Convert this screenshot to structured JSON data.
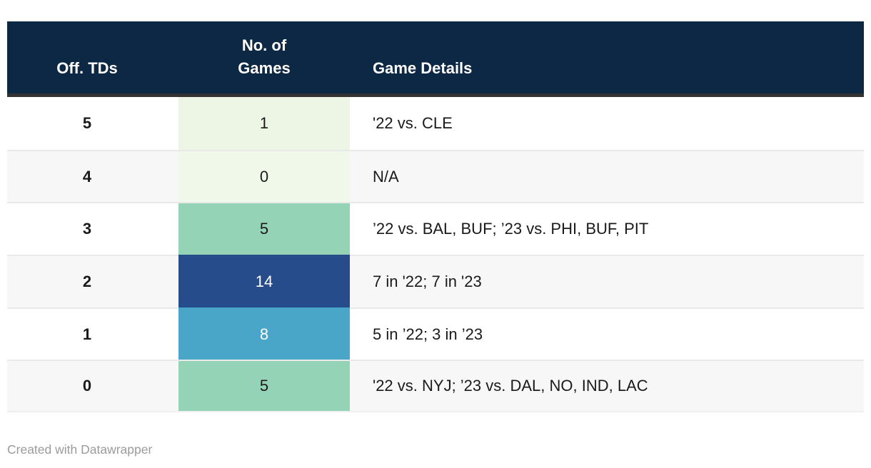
{
  "chart_data": {
    "type": "table",
    "columns": [
      "Off. TDs",
      "No. of Games",
      "Game Details"
    ],
    "rows": [
      {
        "off_tds": "5",
        "games": "1",
        "details": "'22 vs. CLE",
        "games_bg": "#edf6e4",
        "games_color": "#1a1a1a"
      },
      {
        "off_tds": "4",
        "games": "0",
        "details": "N/A",
        "games_bg": "#f0f8ea",
        "games_color": "#1a1a1a"
      },
      {
        "off_tds": "3",
        "games": "5",
        "details": "’22 vs. BAL, BUF; ’23 vs. PHI, BUF, PIT",
        "games_bg": "#95d3b6",
        "games_color": "#1a1a1a"
      },
      {
        "off_tds": "2",
        "games": "14",
        "details": "7 in '22; 7 in '23",
        "games_bg": "#274c8c",
        "games_color": "#ffffff"
      },
      {
        "off_tds": "1",
        "games": "8",
        "details": "5 in ’22; 3 in ’23",
        "games_bg": "#4aa6c8",
        "games_color": "#ffffff"
      },
      {
        "off_tds": "0",
        "games": "5",
        "details": "'22 vs. NYJ; ’23 vs. DAL, NO, IND, LAC",
        "games_bg": "#95d3b6",
        "games_color": "#1a1a1a"
      }
    ],
    "legend_note": "No. of Games column is heat-colored from light green (low) to dark blue (high)"
  },
  "header": {
    "col1": "Off. TDs",
    "col2": "No. of\nGames",
    "col3": "Game Details",
    "bg_color": "#0d2845",
    "border_color": "#333333"
  },
  "footer": {
    "credit": "Created with Datawrapper"
  },
  "colors": {
    "row_alt_bg": "#f7f7f7",
    "row_border": "#e9e9e9",
    "body_text": "#1a1a1a",
    "footer_text": "#9b9b9b"
  }
}
